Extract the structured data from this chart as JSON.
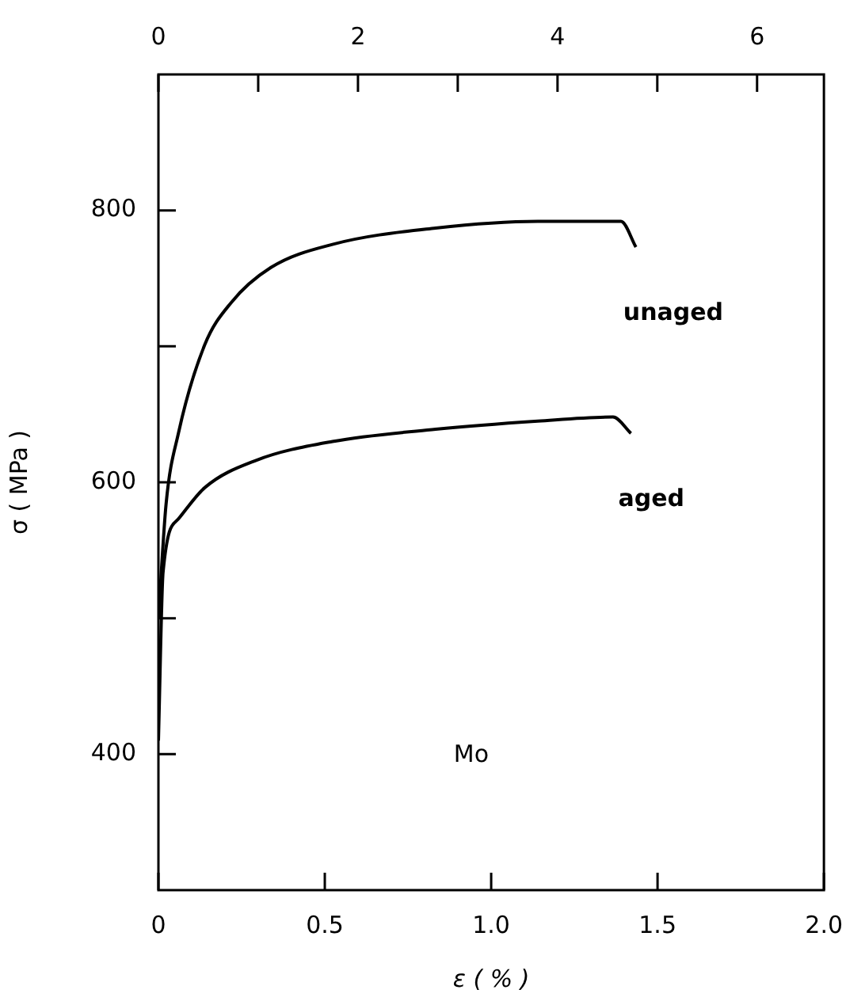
{
  "chart_data": {
    "type": "line",
    "xlabel": "ε ( % )",
    "ylabel": "σ ( MPa )",
    "xlim": [
      0,
      2
    ],
    "xticks": [
      0,
      0.5,
      {
        "value": 1,
        "label": "1.0"
      },
      1.5,
      {
        "value": 2,
        "label": "2.0"
      }
    ],
    "x2lim": [
      0,
      6.67
    ],
    "x2ticks": [
      0,
      {
        "value": 1,
        "label": null
      },
      2,
      {
        "value": 3,
        "label": null
      },
      4,
      {
        "value": 5,
        "label": null
      },
      6
    ],
    "ylim": [
      300,
      900
    ],
    "yticks": [
      400,
      {
        "value": 500,
        "label": null
      },
      600,
      {
        "value": 700,
        "label": null
      },
      800
    ],
    "marker": "none",
    "line_style": "solid",
    "legend": false,
    "annotations": [
      "Mo"
    ],
    "series": [
      {
        "name": "unaged",
        "color": "#000000",
        "x": [
          0,
          0.023,
          0.06,
          0.139,
          0.218,
          0.338,
          0.523,
          0.833,
          1.14,
          1.39,
          1.435
        ],
        "values": [
          500,
          584,
          636,
          701,
          732,
          758,
          775,
          787,
          792,
          792,
          773
        ]
      },
      {
        "name": "aged",
        "color": "#000000",
        "x": [
          0,
          0.014,
          0.06,
          0.139,
          0.292,
          0.523,
          0.833,
          1.14,
          1.366,
          1.42
        ],
        "values": [
          410,
          534,
          573,
          596,
          616,
          630,
          639,
          645,
          648,
          636
        ]
      }
    ]
  }
}
